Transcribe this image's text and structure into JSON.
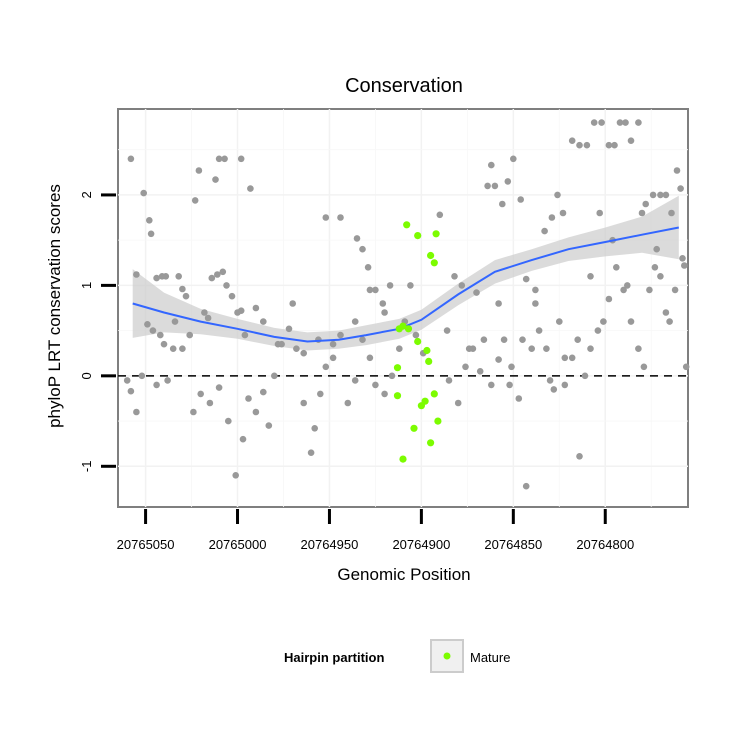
{
  "chart_data": {
    "type": "scatter",
    "title": "Conservation",
    "xlabel": "Genomic Position",
    "ylabel": "phyloP LRT conservation scores",
    "x_reversed": true,
    "xlim": [
      20765065,
      20764755
    ],
    "ylim": [
      -1.45,
      2.95
    ],
    "x_ticks": [
      20765050,
      20765000,
      20764950,
      20764900,
      20764850,
      20764800
    ],
    "x_tick_labels": [
      "20765050",
      "20765000",
      "20764950",
      "20764900",
      "20764850",
      "20764800"
    ],
    "y_ticks": [
      -1,
      0,
      1,
      2
    ],
    "y_tick_labels": [
      "-1",
      "0",
      "1",
      "2"
    ],
    "hline": 0,
    "grid": true,
    "colors": {
      "other": "#999999",
      "mature": "#7cfc00",
      "smooth": "#3366ff",
      "band": "#cccccc"
    },
    "legend": {
      "title": "Hairpin partition",
      "placement": "bottom",
      "entries": [
        "Mature"
      ]
    },
    "series": [
      {
        "name": "Mature",
        "points": [
          [
            20764892,
            1.57
          ],
          [
            20764893,
            1.25
          ],
          [
            20764895,
            1.33
          ],
          [
            20764908,
            1.67
          ],
          [
            20764902,
            1.55
          ],
          [
            20764897,
            0.28
          ],
          [
            20764896,
            0.16
          ],
          [
            20764902,
            0.38
          ],
          [
            20764907,
            0.52
          ],
          [
            20764910,
            0.55
          ],
          [
            20764912,
            0.52
          ],
          [
            20764913,
            0.09
          ],
          [
            20764893,
            -0.2
          ],
          [
            20764891,
            -0.5
          ],
          [
            20764895,
            -0.74
          ],
          [
            20764898,
            -0.28
          ],
          [
            20764900,
            -0.33
          ],
          [
            20764904,
            -0.58
          ],
          [
            20764913,
            -0.22
          ],
          [
            20764910,
            -0.92
          ]
        ]
      },
      {
        "points": [
          [
            20765058,
            2.4
          ],
          [
            20765055,
            1.12
          ],
          [
            20765051,
            2.02
          ],
          [
            20765048,
            1.72
          ],
          [
            20765047,
            1.57
          ],
          [
            20765044,
            1.08
          ],
          [
            20765041,
            1.1
          ],
          [
            20765039,
            1.1
          ],
          [
            20765032,
            1.1
          ],
          [
            20765030,
            0.96
          ],
          [
            20765028,
            0.88
          ],
          [
            20765018,
            0.7
          ],
          [
            20765016,
            0.64
          ],
          [
            20765014,
            1.08
          ],
          [
            20765011,
            1.12
          ],
          [
            20765008,
            1.15
          ],
          [
            20765006,
            1.0
          ],
          [
            20765003,
            0.88
          ],
          [
            20765000,
            0.7
          ],
          [
            20764998,
            0.72
          ],
          [
            20765012,
            2.17
          ],
          [
            20765010,
            2.4
          ],
          [
            20765007,
            2.4
          ],
          [
            20764998,
            2.4
          ],
          [
            20764993,
            2.07
          ],
          [
            20765021,
            2.27
          ],
          [
            20765023,
            1.94
          ],
          [
            20765060,
            -0.05
          ],
          [
            20765058,
            -0.17
          ],
          [
            20765055,
            -0.4
          ],
          [
            20765052,
            0.0
          ],
          [
            20765049,
            0.57
          ],
          [
            20765046,
            0.5
          ],
          [
            20765042,
            0.45
          ],
          [
            20765038,
            -0.05
          ],
          [
            20765035,
            0.3
          ],
          [
            20765030,
            0.3
          ],
          [
            20765026,
            0.45
          ],
          [
            20765024,
            -0.4
          ],
          [
            20765020,
            -0.2
          ],
          [
            20765015,
            -0.3
          ],
          [
            20765010,
            -0.13
          ],
          [
            20765005,
            -0.5
          ],
          [
            20765001,
            -1.1
          ],
          [
            20764997,
            -0.7
          ],
          [
            20764994,
            -0.25
          ],
          [
            20764990,
            -0.4
          ],
          [
            20764986,
            -0.18
          ],
          [
            20764983,
            -0.55
          ],
          [
            20764980,
            0.0
          ],
          [
            20764976,
            0.35
          ],
          [
            20764972,
            0.52
          ],
          [
            20764968,
            0.3
          ],
          [
            20764964,
            -0.3
          ],
          [
            20764960,
            -0.85
          ],
          [
            20764958,
            -0.58
          ],
          [
            20764955,
            -0.2
          ],
          [
            20764952,
            0.1
          ],
          [
            20764948,
            0.35
          ],
          [
            20764944,
            0.45
          ],
          [
            20764940,
            -0.3
          ],
          [
            20764936,
            -0.05
          ],
          [
            20764932,
            0.4
          ],
          [
            20764928,
            0.2
          ],
          [
            20764925,
            -0.1
          ],
          [
            20764920,
            -0.2
          ],
          [
            20764916,
            0.0
          ],
          [
            20764912,
            0.3
          ],
          [
            20764909,
            0.6
          ],
          [
            20764906,
            1.0
          ],
          [
            20764903,
            0.45
          ],
          [
            20764899,
            0.25
          ],
          [
            20764885,
            -0.05
          ],
          [
            20764880,
            -0.3
          ],
          [
            20764876,
            0.1
          ],
          [
            20764872,
            0.3
          ],
          [
            20764868,
            0.05
          ],
          [
            20764862,
            -0.1
          ],
          [
            20764858,
            0.18
          ],
          [
            20764855,
            0.4
          ],
          [
            20764851,
            0.1
          ],
          [
            20764847,
            -0.25
          ],
          [
            20764843,
            -1.22
          ],
          [
            20764840,
            0.3
          ],
          [
            20764836,
            0.5
          ],
          [
            20764832,
            0.3
          ],
          [
            20764828,
            -0.15
          ],
          [
            20764825,
            0.6
          ],
          [
            20764822,
            -0.1
          ],
          [
            20764818,
            0.2
          ],
          [
            20764814,
            -0.89
          ],
          [
            20764811,
            0.0
          ],
          [
            20764808,
            0.3
          ],
          [
            20764804,
            0.5
          ],
          [
            20764801,
            0.6
          ],
          [
            20764798,
            0.85
          ],
          [
            20764794,
            1.2
          ],
          [
            20764790,
            0.95
          ],
          [
            20764786,
            0.6
          ],
          [
            20764782,
            0.3
          ],
          [
            20764779,
            0.1
          ],
          [
            20764776,
            0.95
          ],
          [
            20764773,
            1.2
          ],
          [
            20764770,
            1.1
          ],
          [
            20764767,
            0.7
          ],
          [
            20764952,
            1.75
          ],
          [
            20764944,
            1.75
          ],
          [
            20764935,
            1.52
          ],
          [
            20764932,
            1.4
          ],
          [
            20764929,
            1.2
          ],
          [
            20764925,
            0.95
          ],
          [
            20764921,
            0.8
          ],
          [
            20764917,
            1.0
          ],
          [
            20764890,
            1.78
          ],
          [
            20764882,
            1.1
          ],
          [
            20764878,
            1.0
          ],
          [
            20764870,
            0.92
          ],
          [
            20764864,
            2.1
          ],
          [
            20764862,
            2.33
          ],
          [
            20764860,
            2.1
          ],
          [
            20764856,
            1.9
          ],
          [
            20764853,
            2.15
          ],
          [
            20764850,
            2.4
          ],
          [
            20764846,
            1.95
          ],
          [
            20764843,
            1.07
          ],
          [
            20764838,
            0.95
          ],
          [
            20764833,
            1.6
          ],
          [
            20764829,
            1.75
          ],
          [
            20764826,
            2.0
          ],
          [
            20764823,
            1.8
          ],
          [
            20764818,
            2.6
          ],
          [
            20764814,
            2.55
          ],
          [
            20764810,
            2.55
          ],
          [
            20764806,
            2.8
          ],
          [
            20764802,
            2.8
          ],
          [
            20764798,
            2.55
          ],
          [
            20764795,
            2.55
          ],
          [
            20764792,
            2.8
          ],
          [
            20764789,
            2.8
          ],
          [
            20764786,
            2.6
          ],
          [
            20764782,
            2.8
          ],
          [
            20764778,
            1.9
          ],
          [
            20764774,
            2.0
          ],
          [
            20764770,
            2.0
          ],
          [
            20764767,
            2.0
          ],
          [
            20764764,
            1.8
          ],
          [
            20764761,
            2.27
          ],
          [
            20764759,
            2.07
          ],
          [
            20764758,
            1.3
          ],
          [
            20764757,
            1.22
          ],
          [
            20764756,
            0.1
          ],
          [
            20764762,
            0.95
          ],
          [
            20764765,
            0.6
          ],
          [
            20764772,
            1.4
          ],
          [
            20764780,
            1.8
          ],
          [
            20764788,
            1.0
          ],
          [
            20764796,
            1.5
          ],
          [
            20764803,
            1.8
          ],
          [
            20764808,
            1.1
          ],
          [
            20764815,
            0.4
          ],
          [
            20764822,
            0.2
          ],
          [
            20764830,
            -0.05
          ],
          [
            20764838,
            0.8
          ],
          [
            20764845,
            0.4
          ],
          [
            20764852,
            -0.1
          ],
          [
            20764858,
            0.8
          ],
          [
            20764866,
            0.4
          ],
          [
            20764874,
            0.3
          ],
          [
            20764886,
            0.5
          ],
          [
            20764920,
            0.7
          ],
          [
            20764928,
            0.95
          ],
          [
            20764936,
            0.6
          ],
          [
            20764948,
            0.2
          ],
          [
            20764956,
            0.4
          ],
          [
            20764964,
            0.25
          ],
          [
            20764970,
            0.8
          ],
          [
            20764978,
            0.35
          ],
          [
            20764986,
            0.6
          ],
          [
            20764990,
            0.75
          ],
          [
            20764996,
            0.45
          ],
          [
            20765034,
            0.6
          ],
          [
            20765040,
            0.35
          ],
          [
            20765044,
            -0.1
          ]
        ]
      }
    ],
    "smooth": [
      [
        20765057,
        0.8
      ],
      [
        20765040,
        0.7
      ],
      [
        20765020,
        0.6
      ],
      [
        20765000,
        0.52
      ],
      [
        20764980,
        0.43
      ],
      [
        20764962,
        0.38
      ],
      [
        20764945,
        0.4
      ],
      [
        20764930,
        0.45
      ],
      [
        20764912,
        0.52
      ],
      [
        20764900,
        0.62
      ],
      [
        20764880,
        0.9
      ],
      [
        20764860,
        1.15
      ],
      [
        20764840,
        1.28
      ],
      [
        20764820,
        1.4
      ],
      [
        20764800,
        1.48
      ],
      [
        20764780,
        1.56
      ],
      [
        20764760,
        1.64
      ]
    ],
    "smooth_band": [
      [
        20765057,
        1.18,
        0.42
      ],
      [
        20765040,
        0.92,
        0.48
      ],
      [
        20765020,
        0.74,
        0.46
      ],
      [
        20765000,
        0.63,
        0.41
      ],
      [
        20764980,
        0.53,
        0.33
      ],
      [
        20764962,
        0.48,
        0.28
      ],
      [
        20764945,
        0.5,
        0.3
      ],
      [
        20764930,
        0.56,
        0.34
      ],
      [
        20764912,
        0.63,
        0.41
      ],
      [
        20764900,
        0.73,
        0.51
      ],
      [
        20764880,
        1.02,
        0.78
      ],
      [
        20764860,
        1.28,
        1.02
      ],
      [
        20764840,
        1.4,
        1.16
      ],
      [
        20764820,
        1.53,
        1.27
      ],
      [
        20764800,
        1.64,
        1.32
      ],
      [
        20764780,
        1.76,
        1.36
      ],
      [
        20764760,
        1.99,
        1.29
      ]
    ]
  }
}
